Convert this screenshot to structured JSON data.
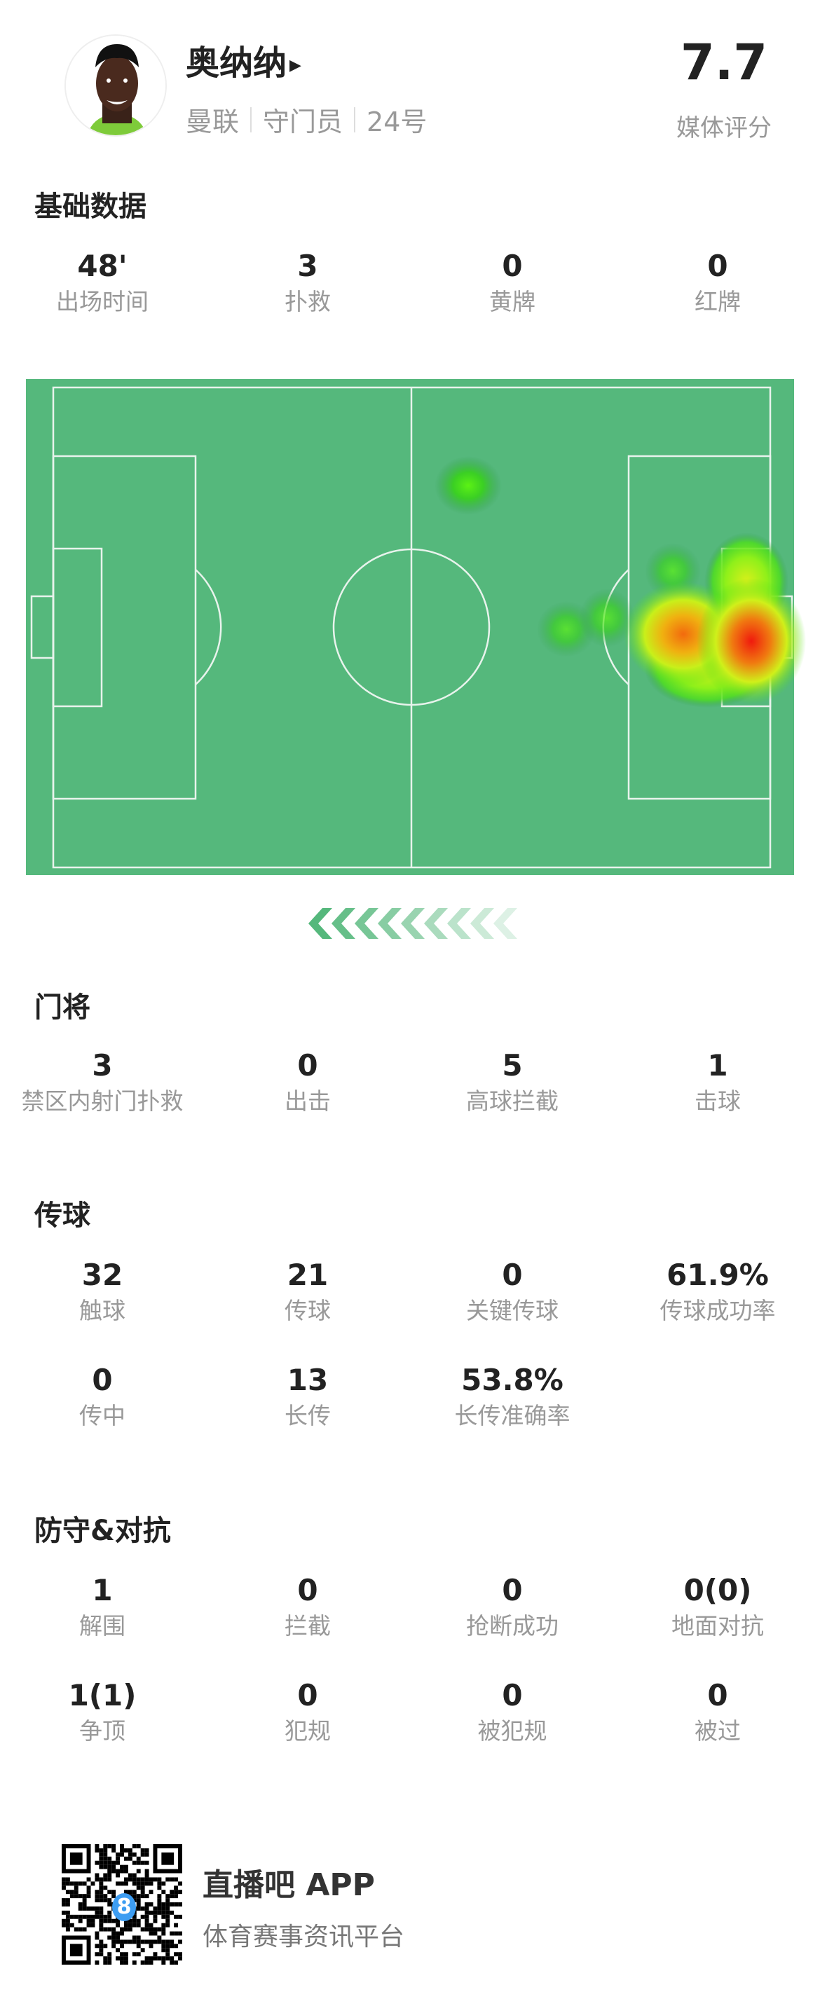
{
  "player": {
    "name": "奥纳纳",
    "team": "曼联",
    "position": "守门员",
    "number": "24号",
    "rating": "7.7",
    "rating_label": "媒体评分"
  },
  "basic": {
    "title": "基础数据",
    "stats": [
      {
        "value": "48'",
        "label": "出场时间"
      },
      {
        "value": "3",
        "label": "扑救"
      },
      {
        "value": "0",
        "label": "黄牌"
      },
      {
        "value": "0",
        "label": "红牌"
      }
    ]
  },
  "heatmap": {
    "pitch_color": "#55b87c",
    "line_color": "#e8f3ec",
    "attack_direction": "left"
  },
  "goalkeeper": {
    "title": "门将",
    "stats": [
      {
        "value": "3",
        "label": "禁区内射门扑救"
      },
      {
        "value": "0",
        "label": "出击"
      },
      {
        "value": "5",
        "label": "高球拦截"
      },
      {
        "value": "1",
        "label": "击球"
      }
    ]
  },
  "passing": {
    "title": "传球",
    "stats": [
      {
        "value": "32",
        "label": "触球"
      },
      {
        "value": "21",
        "label": "传球"
      },
      {
        "value": "0",
        "label": "关键传球"
      },
      {
        "value": "61.9%",
        "label": "传球成功率"
      },
      {
        "value": "0",
        "label": "传中"
      },
      {
        "value": "13",
        "label": "长传"
      },
      {
        "value": "53.8%",
        "label": "长传准确率"
      }
    ]
  },
  "defense": {
    "title": "防守&对抗",
    "stats": [
      {
        "value": "1",
        "label": "解围"
      },
      {
        "value": "0",
        "label": "拦截"
      },
      {
        "value": "0",
        "label": "抢断成功"
      },
      {
        "value": "0(0)",
        "label": "地面对抗"
      },
      {
        "value": "1(1)",
        "label": "争顶"
      },
      {
        "value": "0",
        "label": "犯规"
      },
      {
        "value": "0",
        "label": "被犯规"
      },
      {
        "value": "0",
        "label": "被过"
      }
    ]
  },
  "footer": {
    "app_name": "直播吧 APP",
    "tagline": "体育赛事资讯平台",
    "qr_badge": "8",
    "qr_badge_color": "#3d9df2"
  }
}
